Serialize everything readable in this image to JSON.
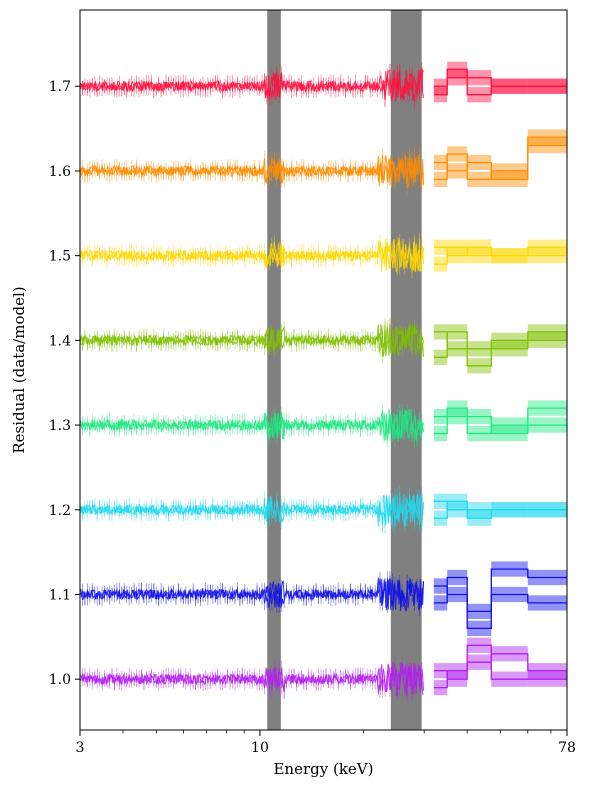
{
  "chart_data": {
    "type": "line",
    "title": "",
    "xlabel": "Energy (keV)",
    "ylabel": "Residual (data/model)",
    "xscale": "log",
    "xlim": [
      3,
      78
    ],
    "ylim": [
      0.94,
      1.79
    ],
    "xticks": [
      3,
      10,
      78
    ],
    "xtick_labels": [
      "3",
      "10",
      "78"
    ],
    "yticks": [
      1.0,
      1.1,
      1.2,
      1.3,
      1.4,
      1.5,
      1.6,
      1.7
    ],
    "ytick_labels": [
      "1.0",
      "1.1",
      "1.2",
      "1.3",
      "1.4",
      "1.5",
      "1.6",
      "1.7"
    ],
    "grid": false,
    "legend": "none",
    "shaded_bands": [
      {
        "x": [
          10.5,
          11.5
        ],
        "color": "#808080"
      },
      {
        "x": [
          24.0,
          29.5
        ],
        "color": "#808080"
      }
    ],
    "series": [
      {
        "offset": 1.7,
        "color": "#ff1040",
        "highE": [
          [
            32,
            1.7,
            1.69
          ],
          [
            35,
            1.72,
            1.71
          ],
          [
            40,
            1.69,
            1.71
          ],
          [
            47,
            1.7,
            1.7
          ],
          [
            60,
            1.7,
            1.7
          ]
        ]
      },
      {
        "offset": 1.6,
        "color": "#ff8c00",
        "highE": [
          [
            32,
            1.59,
            1.61
          ],
          [
            35,
            1.62,
            1.6
          ],
          [
            40,
            1.59,
            1.61
          ],
          [
            47,
            1.6,
            1.59
          ],
          [
            60,
            1.64,
            1.63
          ]
        ]
      },
      {
        "offset": 1.5,
        "color": "#ffd700",
        "highE": [
          [
            32,
            1.49,
            1.51
          ],
          [
            35,
            1.51,
            1.5
          ],
          [
            40,
            1.5,
            1.51
          ],
          [
            47,
            1.5,
            1.5
          ],
          [
            60,
            1.51,
            1.5
          ]
        ]
      },
      {
        "offset": 1.4,
        "color": "#80c000",
        "highE": [
          [
            32,
            1.38,
            1.41
          ],
          [
            35,
            1.41,
            1.39
          ],
          [
            40,
            1.37,
            1.39
          ],
          [
            47,
            1.4,
            1.39
          ],
          [
            60,
            1.41,
            1.4
          ]
        ]
      },
      {
        "offset": 1.3,
        "color": "#20e880",
        "highE": [
          [
            32,
            1.31,
            1.29
          ],
          [
            35,
            1.32,
            1.31
          ],
          [
            40,
            1.29,
            1.31
          ],
          [
            47,
            1.3,
            1.29
          ],
          [
            60,
            1.32,
            1.3
          ]
        ]
      },
      {
        "offset": 1.2,
        "color": "#20d8f0",
        "highE": [
          [
            32,
            1.19,
            1.21
          ],
          [
            35,
            1.21,
            1.2
          ],
          [
            40,
            1.19,
            1.2
          ],
          [
            47,
            1.2,
            1.2
          ],
          [
            60,
            1.2,
            1.2
          ]
        ]
      },
      {
        "offset": 1.1,
        "color": "#1010e8",
        "highE": [
          [
            32,
            1.09,
            1.11
          ],
          [
            35,
            1.12,
            1.1
          ],
          [
            40,
            1.06,
            1.08
          ],
          [
            47,
            1.13,
            1.1
          ],
          [
            60,
            1.12,
            1.09
          ]
        ]
      },
      {
        "offset": 1.0,
        "color": "#b020f0",
        "highE": [
          [
            32,
            0.99,
            1.01
          ],
          [
            35,
            1.01,
            1.0
          ],
          [
            40,
            1.02,
            1.04
          ],
          [
            47,
            1.03,
            1.0
          ],
          [
            60,
            1.01,
            1.0
          ]
        ]
      }
    ]
  }
}
